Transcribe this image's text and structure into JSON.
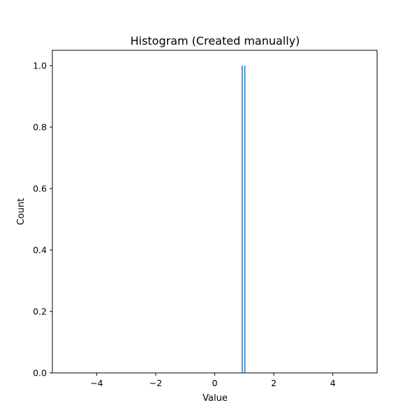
{
  "chart_data": {
    "type": "bar",
    "title": "Histogram (Created manually)",
    "xlabel": "Value",
    "ylabel": "Count",
    "xlim": [
      -5.5,
      5.5
    ],
    "ylim": [
      0,
      1.05
    ],
    "xticks": [
      -4,
      -2,
      0,
      2,
      4
    ],
    "xtick_labels": [
      "−4",
      "−2",
      "0",
      "2",
      "4"
    ],
    "yticks": [
      0,
      0.2,
      0.4,
      0.6,
      0.8,
      1.0
    ],
    "ytick_labels": [
      "0.0",
      "0.2",
      "0.4",
      "0.6",
      "0.8",
      "1.0"
    ],
    "bars": [
      {
        "x": 0.93,
        "count": 1
      },
      {
        "x": 1.02,
        "count": 1
      }
    ],
    "bar_width": 0.035,
    "bar_color": "#1f77b4",
    "grid": false,
    "legend": "none"
  }
}
